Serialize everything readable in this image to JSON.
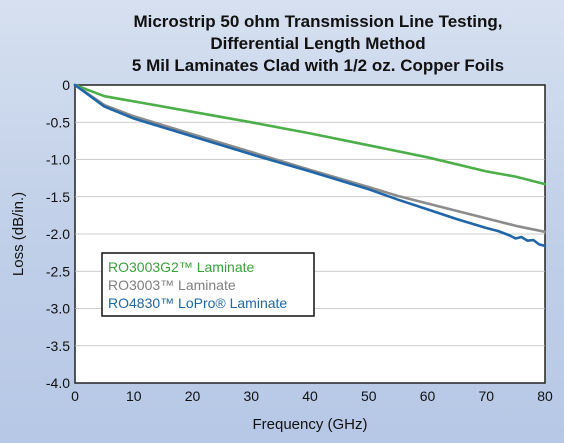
{
  "chart_data": {
    "type": "line",
    "title": [
      "Microstrip 50 ohm Transmission Line Testing,",
      "Differential Length Method",
      "5 Mil Laminates Clad with 1/2 oz. Copper Foils"
    ],
    "xlabel": "Frequency (GHz)",
    "ylabel": "Loss (dB/in.)",
    "xlim": [
      0,
      80
    ],
    "ylim": [
      -4.0,
      0
    ],
    "x_ticks": [
      "0",
      "10",
      "20",
      "30",
      "40",
      "50",
      "60",
      "70",
      "80"
    ],
    "y_ticks": [
      "0",
      "-0.5",
      "-1.0",
      "-1.5",
      "-2.0",
      "-2.5",
      "-3.0",
      "-3.5",
      "-4.0"
    ],
    "grid": "horizontal",
    "legend_position": "lower-left",
    "series": [
      {
        "name": "RO3003G2™ Laminate",
        "color": "#4daf4a",
        "x": [
          0,
          5,
          10,
          20,
          30,
          40,
          50,
          60,
          70,
          75,
          80
        ],
        "y": [
          0,
          -0.15,
          -0.22,
          -0.36,
          -0.5,
          -0.65,
          -0.81,
          -0.97,
          -1.16,
          -1.23,
          -1.33
        ]
      },
      {
        "name": "RO3003™ Laminate",
        "color": "#8c8c8c",
        "x": [
          0,
          5,
          10,
          20,
          30,
          40,
          50,
          55,
          60,
          70,
          75,
          80
        ],
        "y": [
          0,
          -0.27,
          -0.42,
          -0.66,
          -0.9,
          -1.14,
          -1.37,
          -1.49,
          -1.59,
          -1.79,
          -1.89,
          -1.97
        ]
      },
      {
        "name": "RO4830™ LoPro® Laminate",
        "color": "#2167a8",
        "x": [
          0,
          5,
          10,
          20,
          30,
          40,
          50,
          55,
          60,
          65,
          70,
          72,
          74,
          75,
          76,
          77,
          78,
          79,
          80
        ],
        "y": [
          0,
          -0.29,
          -0.45,
          -0.69,
          -0.93,
          -1.16,
          -1.4,
          -1.54,
          -1.67,
          -1.8,
          -1.92,
          -1.96,
          -2.02,
          -2.06,
          -2.04,
          -2.09,
          -2.08,
          -2.14,
          -2.16
        ]
      }
    ]
  }
}
